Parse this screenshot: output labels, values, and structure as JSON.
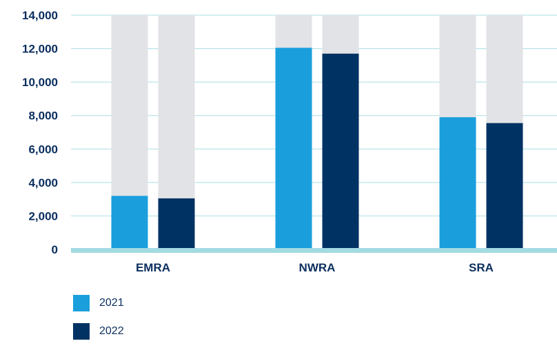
{
  "chart_data": {
    "type": "bar",
    "categories": [
      "EMRA",
      "NWRA",
      "SRA"
    ],
    "series": [
      {
        "name": "2021",
        "values": [
          3200,
          12050,
          7900
        ],
        "color": "#1a9fdc"
      },
      {
        "name": "2022",
        "values": [
          3050,
          11700,
          7550
        ],
        "color": "#003263"
      }
    ],
    "background_max": 14000,
    "background_color": "#e2e3e7",
    "ylim": [
      0,
      14000
    ],
    "y_ticks": [
      "0",
      "2,000",
      "4,000",
      "6,000",
      "8,000",
      "10,000",
      "12,000",
      "14,000"
    ],
    "grid": true,
    "grid_color": "#a9dde5",
    "baseline_color": "#a3dbe3",
    "legend_position": "bottom-left",
    "xlabel": "",
    "ylabel": "",
    "title": ""
  }
}
